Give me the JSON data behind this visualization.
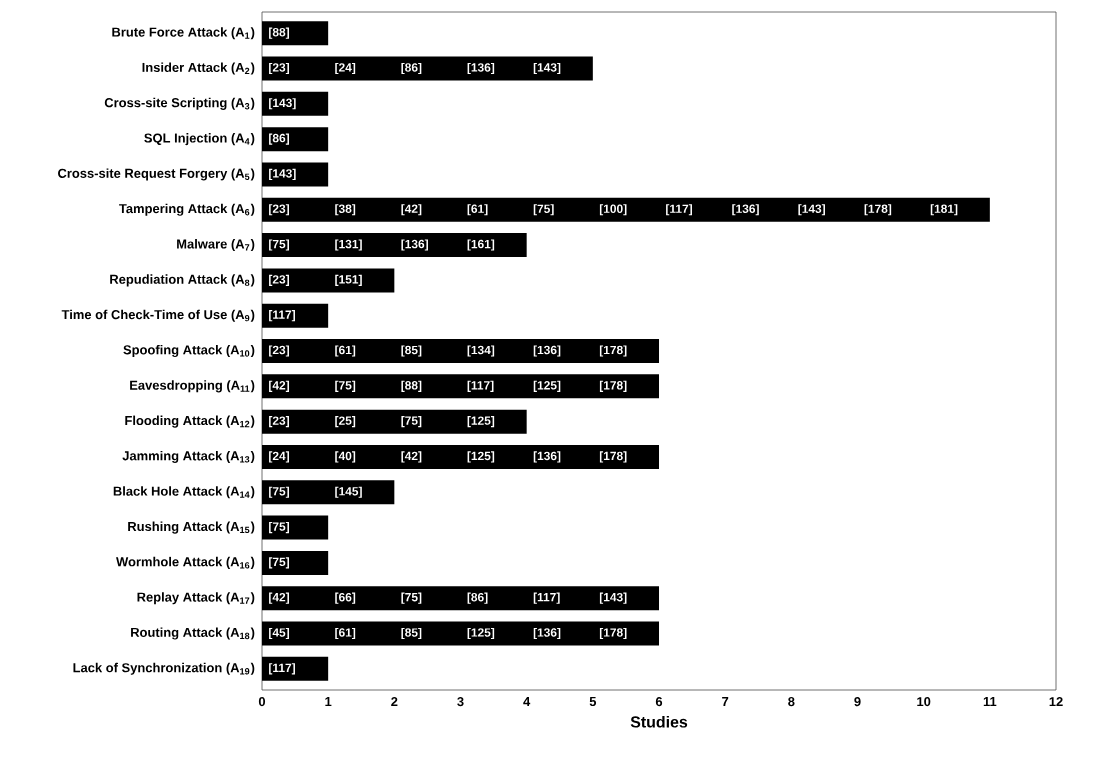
{
  "chart_data": {
    "type": "bar",
    "orientation": "horizontal",
    "xlabel": "Studies",
    "color": "#000000",
    "categories": [
      "Brute Force Attack (A$_{1}$)",
      "Insider Attack (A$_{2}$)",
      "Cross-site Scripting (A$_{3}$)",
      "SQL Injection (A$_{4}$)",
      "Cross-site Request Forgery (A$_{5}$)",
      "Tampering Attack (A$_{6}$)",
      "Malware (A$_{7}$)",
      "Repudiation Attack (A$_{8}$)",
      "Time of Check-Time of Use (A$_{9}$)",
      "Spoofing Attack (A$_{10}$)",
      "Eavesdropping (A$_{11}$)",
      "Flooding Attack (A$_{12}$)",
      "Jamming Attack (A$_{13}$)",
      "Black Hole Attack (A$_{14}$)",
      "Rushing Attack (A$_{15}$)",
      "Wormhole Attack (A$_{16}$)",
      "Replay Attack (A$_{17}$)",
      "Routing Attack (A$_{18}$)",
      "Lack of Synchronization (A$_{19}$)"
    ],
    "values": [
      1,
      5,
      1,
      1,
      1,
      11,
      4,
      2,
      1,
      6,
      6,
      4,
      6,
      2,
      1,
      1,
      6,
      6,
      1
    ],
    "xlim": [
      0,
      12
    ],
    "xticks": [
      0,
      1,
      2,
      3,
      4,
      5,
      6,
      7,
      8,
      9,
      10,
      11,
      12
    ],
    "annotations": [
      {
        "text": "[88]",
        "x": 0,
        "y": "Brute Force Attack (A$_{1}$)"
      },
      {
        "text": "[23]",
        "x": 0,
        "y": "Insider Attack (A$_{2}$)"
      },
      {
        "text": "[24]",
        "x": 1,
        "y": "Insider Attack (A$_{2}$)"
      },
      {
        "text": "[86]",
        "x": 2,
        "y": "Insider Attack (A$_{2}$)"
      },
      {
        "text": "[136]",
        "x": 3,
        "y": "Insider Attack (A$_{2}$)"
      },
      {
        "text": "[143]",
        "x": 4,
        "y": "Insider Attack (A$_{2}$)"
      },
      {
        "text": "[143]",
        "x": 0,
        "y": "Cross-site Scripting (A$_{3}$)"
      },
      {
        "text": "[86]",
        "x": 0,
        "y": "SQL Injection (A$_{4}$)"
      },
      {
        "text": "[143]",
        "x": 0,
        "y": "Cross-site Request Forgery (A$_{5}$)"
      },
      {
        "text": "[23]",
        "x": 0,
        "y": "Tampering Attack (A$_{6}$)"
      },
      {
        "text": "[38]",
        "x": 1,
        "y": "Tampering Attack (A$_{6}$)"
      },
      {
        "text": "[42]",
        "x": 2,
        "y": "Tampering Attack (A$_{6}$)"
      },
      {
        "text": "[61]",
        "x": 3,
        "y": "Tampering Attack (A$_{6}$)"
      },
      {
        "text": "[75]",
        "x": 4,
        "y": "Tampering Attack (A$_{6}$)"
      },
      {
        "text": "[100]",
        "x": 5,
        "y": "Tampering Attack (A$_{6}$)"
      },
      {
        "text": "[117]",
        "x": 6,
        "y": "Tampering Attack (A$_{6}$)"
      },
      {
        "text": "[136]",
        "x": 7,
        "y": "Tampering Attack (A$_{6}$)"
      },
      {
        "text": "[143]",
        "x": 8,
        "y": "Tampering Attack (A$_{6}$)"
      },
      {
        "text": "[178]",
        "x": 9,
        "y": "Tampering Attack (A$_{6}$)"
      },
      {
        "text": "[181]",
        "x": 10,
        "y": "Tampering Attack (A$_{6}$)"
      },
      {
        "text": "[75]",
        "x": 0,
        "y": "Malware (A$_{7}$)"
      },
      {
        "text": "[131]",
        "x": 1,
        "y": "Malware (A$_{7}$)"
      },
      {
        "text": "[136]",
        "x": 2,
        "y": "Malware (A$_{7}$)"
      },
      {
        "text": "[161]",
        "x": 3,
        "y": "Malware (A$_{7}$)"
      },
      {
        "text": "[23]",
        "x": 0,
        "y": "Repudiation Attack (A$_{8}$)"
      },
      {
        "text": "[151]",
        "x": 1,
        "y": "Repudiation Attack (A$_{8}$)"
      },
      {
        "text": "[117]",
        "x": 0,
        "y": "Time of Check-Time of Use (A$_{9}$)"
      },
      {
        "text": "[23]",
        "x": 0,
        "y": "Spoofing Attack (A$_{10}$)"
      },
      {
        "text": "[61]",
        "x": 1,
        "y": "Spoofing Attack (A$_{10}$)"
      },
      {
        "text": "[85]",
        "x": 2,
        "y": "Spoofing Attack (A$_{10}$)"
      },
      {
        "text": "[134]",
        "x": 3,
        "y": "Spoofing Attack (A$_{10}$)"
      },
      {
        "text": "[136]",
        "x": 4,
        "y": "Spoofing Attack (A$_{10}$)"
      },
      {
        "text": "[178]",
        "x": 5,
        "y": "Spoofing Attack (A$_{10}$)"
      },
      {
        "text": "[42]",
        "x": 0,
        "y": "Eavesdropping (A$_{11}$)"
      },
      {
        "text": "[75]",
        "x": 1,
        "y": "Eavesdropping (A$_{11}$)"
      },
      {
        "text": "[88]",
        "x": 2,
        "y": "Eavesdropping (A$_{11}$)"
      },
      {
        "text": "[117]",
        "x": 3,
        "y": "Eavesdropping (A$_{11}$)"
      },
      {
        "text": "[125]",
        "x": 4,
        "y": "Eavesdropping (A$_{11}$)"
      },
      {
        "text": "[178]",
        "x": 5,
        "y": "Eavesdropping (A$_{11}$)"
      },
      {
        "text": "[23]",
        "x": 0,
        "y": "Flooding Attack (A$_{12}$)"
      },
      {
        "text": "[25]",
        "x": 1,
        "y": "Flooding Attack (A$_{12}$)"
      },
      {
        "text": "[75]",
        "x": 2,
        "y": "Flooding Attack (A$_{12}$)"
      },
      {
        "text": "[125]",
        "x": 3,
        "y": "Flooding Attack (A$_{12}$)"
      },
      {
        "text": "[24]",
        "x": 0,
        "y": "Jamming Attack (A$_{13}$)"
      },
      {
        "text": "[40]",
        "x": 1,
        "y": "Jamming Attack (A$_{13}$)"
      },
      {
        "text": "[42]",
        "x": 2,
        "y": "Jamming Attack (A$_{13}$)"
      },
      {
        "text": "[125]",
        "x": 3,
        "y": "Jamming Attack (A$_{13}$)"
      },
      {
        "text": "[136]",
        "x": 4,
        "y": "Jamming Attack (A$_{13}$)"
      },
      {
        "text": "[178]",
        "x": 5,
        "y": "Jamming Attack (A$_{13}$)"
      },
      {
        "text": "[75]",
        "x": 0,
        "y": "Black Hole Attack (A$_{14}$)"
      },
      {
        "text": "[145]",
        "x": 1,
        "y": "Black Hole Attack (A$_{14}$)"
      },
      {
        "text": "[75]",
        "x": 0,
        "y": "Rushing Attack (A$_{15}$)"
      },
      {
        "text": "[75]",
        "x": 0,
        "y": "Wormhole Attack (A$_{16}$)"
      },
      {
        "text": "[42]",
        "x": 0,
        "y": "Replay Attack (A$_{17}$)"
      },
      {
        "text": "[66]",
        "x": 1,
        "y": "Replay Attack (A$_{17}$)"
      },
      {
        "text": "[75]",
        "x": 2,
        "y": "Replay Attack (A$_{17}$)"
      },
      {
        "text": "[86]",
        "x": 3,
        "y": "Replay Attack (A$_{17}$)"
      },
      {
        "text": "[117]",
        "x": 4,
        "y": "Replay Attack (A$_{17}$)"
      },
      {
        "text": "[143]",
        "x": 5,
        "y": "Replay Attack (A$_{17}$)"
      },
      {
        "text": "[45]",
        "x": 0,
        "y": "Routing Attack (A$_{18}$)"
      },
      {
        "text": "[61]",
        "x": 1,
        "y": "Routing Attack (A$_{18}$)"
      },
      {
        "text": "[85]",
        "x": 2,
        "y": "Routing Attack (A$_{18}$)"
      },
      {
        "text": "[125]",
        "x": 3,
        "y": "Routing Attack (A$_{18}$)"
      },
      {
        "text": "[136]",
        "x": 4,
        "y": "Routing Attack (A$_{18}$)"
      },
      {
        "text": "[178]",
        "x": 5,
        "y": "Routing Attack (A$_{18}$)"
      },
      {
        "text": "[117]",
        "x": 0,
        "y": "Lack of Synchronization (A$_{19}$)"
      }
    ]
  }
}
